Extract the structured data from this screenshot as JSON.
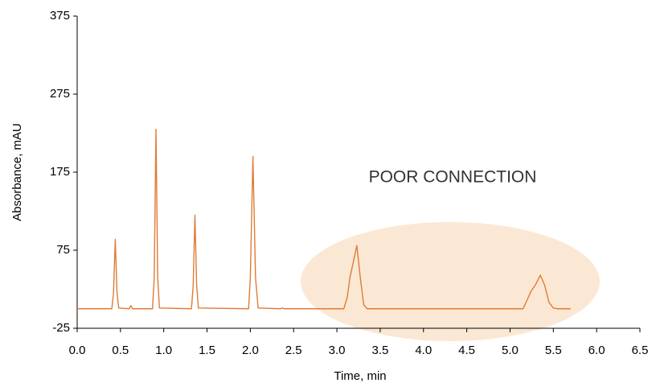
{
  "chart_data": {
    "type": "line",
    "x_label": "Time, min",
    "y_label": "Absorbance, mAU",
    "annotation": "POOR CONNECTION",
    "xlim": [
      0,
      6.5
    ],
    "xticks": [
      {
        "value": 0,
        "label": "0.0"
      },
      0.5,
      {
        "value": 1,
        "label": "1.0"
      },
      1.5,
      {
        "value": 2,
        "label": "2.0"
      },
      2.5,
      {
        "value": 3,
        "label": "3.0"
      },
      3.5,
      {
        "value": 4,
        "label": "4.0"
      },
      4.5,
      {
        "value": 5,
        "label": "5.0"
      },
      5.5,
      {
        "value": 6,
        "label": "6.0"
      },
      6.5
    ],
    "ylim": [
      -25,
      375
    ],
    "yticks": [
      -25,
      75,
      175,
      275,
      375
    ],
    "grid": false,
    "series": [
      {
        "color": "#e07b39",
        "x": [
          0,
          0.4,
          0.42,
          0.44,
          0.46,
          0.48,
          0.6,
          0.62,
          0.64,
          0.87,
          0.89,
          0.91,
          0.93,
          0.95,
          1.32,
          1.34,
          1.36,
          1.38,
          1.4,
          1.98,
          2.0,
          2.03,
          2.06,
          2.09,
          2.35,
          2.37,
          2.39,
          3.08,
          3.12,
          3.15,
          3.19,
          3.23,
          3.27,
          3.31,
          3.35,
          5.15,
          5.2,
          5.24,
          5.29,
          5.35,
          5.4,
          5.45,
          5.5,
          5.55,
          5.7
        ],
        "values": [
          0,
          0,
          20,
          89,
          20,
          1,
          0,
          4,
          0,
          0,
          40,
          230,
          40,
          1,
          0,
          30,
          120,
          30,
          1,
          0,
          40,
          195,
          40,
          1,
          0,
          1,
          0,
          0,
          15,
          40,
          60,
          81,
          40,
          5,
          0,
          0,
          12,
          22,
          30,
          43,
          30,
          8,
          1,
          0,
          0
        ]
      }
    ]
  }
}
